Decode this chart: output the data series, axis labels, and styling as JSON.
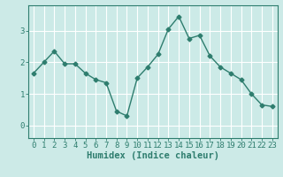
{
  "x": [
    0,
    1,
    2,
    3,
    4,
    5,
    6,
    7,
    8,
    9,
    10,
    11,
    12,
    13,
    14,
    15,
    16,
    17,
    18,
    19,
    20,
    21,
    22,
    23
  ],
  "y": [
    1.65,
    2.0,
    2.35,
    1.95,
    1.95,
    1.65,
    1.45,
    1.35,
    0.45,
    0.3,
    1.5,
    1.85,
    2.25,
    3.05,
    3.45,
    2.75,
    2.85,
    2.2,
    1.85,
    1.65,
    1.45,
    1.0,
    0.65,
    0.6
  ],
  "line_color": "#2e7d6e",
  "marker": "D",
  "markersize": 2.5,
  "linewidth": 1.0,
  "bg_color": "#cceae7",
  "grid_color": "#ffffff",
  "grid_color_minor": "#e8f5f4",
  "axis_color": "#2e7d6e",
  "xlabel": "Humidex (Indice chaleur)",
  "xlim": [
    -0.5,
    23.5
  ],
  "ylim": [
    -0.4,
    3.8
  ],
  "yticks": [
    0,
    1,
    2,
    3
  ],
  "xticks": [
    0,
    1,
    2,
    3,
    4,
    5,
    6,
    7,
    8,
    9,
    10,
    11,
    12,
    13,
    14,
    15,
    16,
    17,
    18,
    19,
    20,
    21,
    22,
    23
  ],
  "xlabel_fontsize": 7.5,
  "tick_fontsize": 6.5
}
